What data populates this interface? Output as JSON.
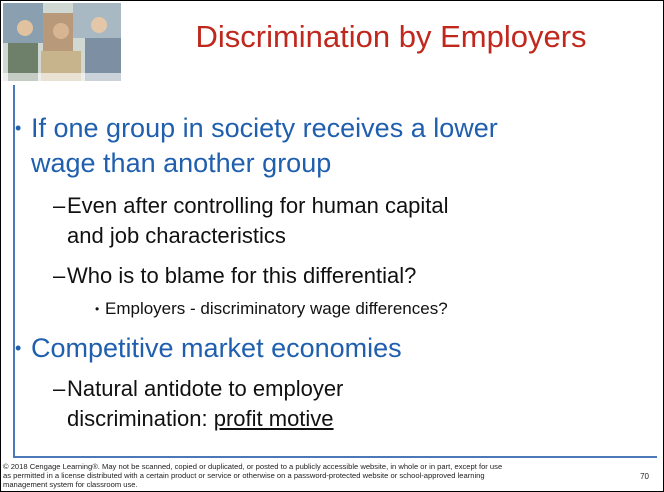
{
  "title": "Discrimination by Employers",
  "bullets": [
    {
      "level": 1,
      "lines": [
        "If one group in society receives a lower",
        "wage than another group"
      ]
    },
    {
      "level": 2,
      "lines": [
        "Even after controlling for human capital",
        "and job characteristics"
      ]
    },
    {
      "level": 2,
      "lines": [
        "Who is to blame for this differential?"
      ]
    },
    {
      "level": 3,
      "lines": [
        "Employers - discriminatory wage differences?"
      ]
    },
    {
      "level": 1,
      "lines": [
        "Competitive market economies"
      ]
    },
    {
      "level": 2,
      "lines": [
        "Natural antidote to employer",
        "discrimination: "
      ],
      "underlined": "profit motive"
    }
  ],
  "footer": {
    "copyright": [
      "© 2018 Cengage Learning®. May not be scanned, copied or duplicated, or posted to a publicly accessible website, in whole or in part, except for use",
      "as permitted in a license distributed with a certain product or service or otherwise on a password-protected website or school-approved learning",
      "management system for classroom use."
    ],
    "page": "70"
  }
}
